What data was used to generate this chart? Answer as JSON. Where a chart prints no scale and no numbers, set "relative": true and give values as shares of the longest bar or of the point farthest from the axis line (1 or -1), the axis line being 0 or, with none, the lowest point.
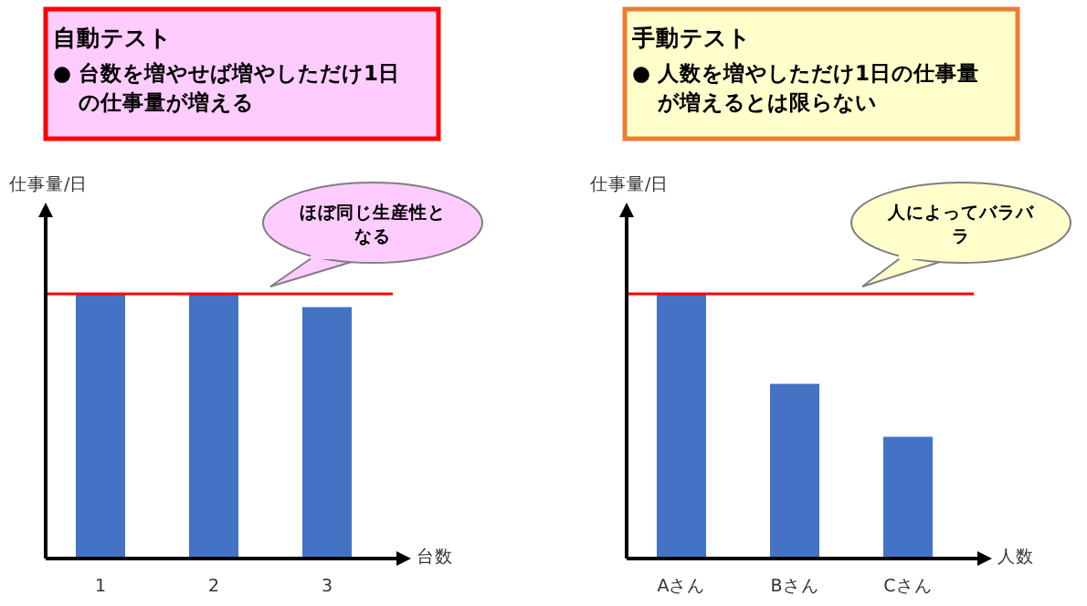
{
  "chart_data": [
    {
      "type": "bar",
      "title": "自動テスト",
      "subtitle": "●  台数を増やせば増やしただけ1日の仕事量が増える",
      "ylabel": "仕事量/日",
      "xlabel": "台数",
      "categories": [
        "1",
        "2",
        "3"
      ],
      "values": [
        1,
        1,
        0.95
      ],
      "color": "#4472c4",
      "relative": true,
      "ref_lines": [
        {
          "axis": "y",
          "value": 1,
          "color": "#ff0000"
        }
      ],
      "annotations": [
        "ほぼ同じ生産性となる"
      ]
    },
    {
      "type": "bar",
      "title": "手動テスト",
      "subtitle": "●  人数を増やしただけ1日の仕事量が増えるとは限らない",
      "ylabel": "仕事量/日",
      "xlabel": "人数",
      "categories": [
        "Aさん",
        "Bさん",
        "Cさん"
      ],
      "values": [
        1,
        0.66,
        0.46
      ],
      "color": "#4472c4",
      "relative": true,
      "ref_lines": [
        {
          "axis": "y",
          "value": 1,
          "color": "#ff0000"
        }
      ],
      "annotations": [
        "人によってバラバラ"
      ]
    }
  ]
}
